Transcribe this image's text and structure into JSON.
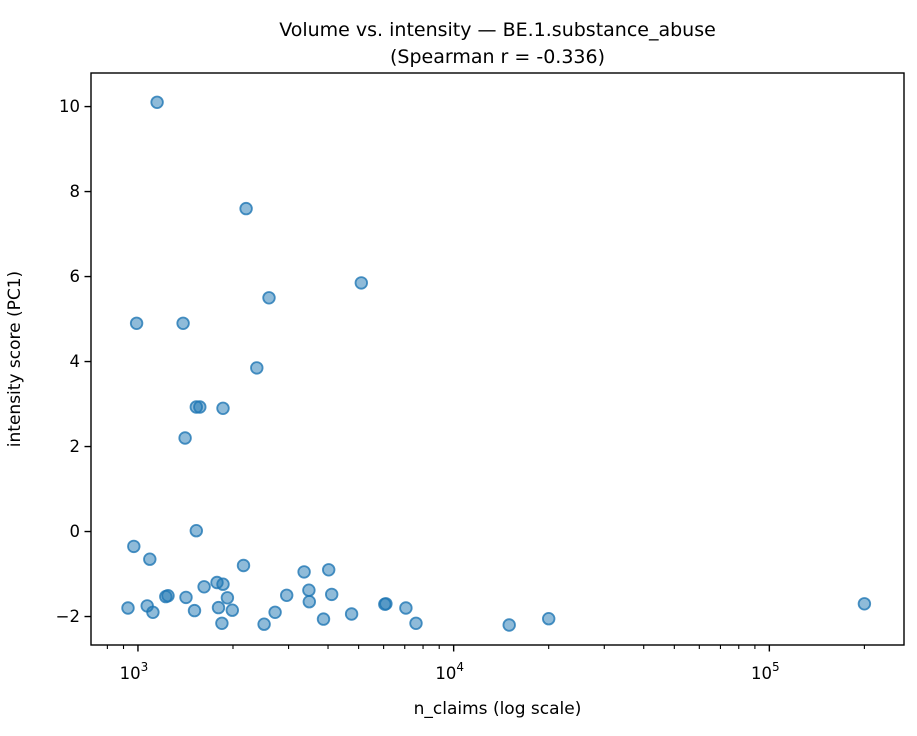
{
  "figure": {
    "background": "#ffffff"
  },
  "chart_data": {
    "type": "scatter",
    "title": "Volume vs. intensity — BE.1.substance_abuse",
    "subtitle": "(Spearman r = -0.336)",
    "xlabel": "n_claims (log scale)",
    "ylabel": "intensity score (PC1)",
    "x_scale": "log",
    "grid": false,
    "legend": "none",
    "xlim": [
      710,
      267000
    ],
    "ylim": [
      -2.67,
      10.79
    ],
    "x_major_tick_exponents": [
      3,
      4,
      5
    ],
    "y_ticks": [
      -2,
      0,
      2,
      4,
      6,
      8,
      10
    ],
    "marker": {
      "shape": "circle",
      "radius": 5.8,
      "fill_color": "#1f77b4",
      "fill_opacity": 0.5,
      "edge_color": "#1f77b4",
      "edge_opacity": 0.8,
      "edge_width": 1.8
    },
    "spine_color": "#000000",
    "points": [
      [
        1150,
        10.1
      ],
      [
        2200,
        7.6
      ],
      [
        2600,
        5.5
      ],
      [
        5100,
        5.85
      ],
      [
        990,
        4.9
      ],
      [
        1390,
        4.9
      ],
      [
        2380,
        3.85
      ],
      [
        1530,
        2.93
      ],
      [
        1570,
        2.93
      ],
      [
        1860,
        2.9
      ],
      [
        1410,
        2.2
      ],
      [
        1530,
        0.02
      ],
      [
        970,
        -0.35
      ],
      [
        1090,
        -0.65
      ],
      [
        2160,
        -0.8
      ],
      [
        3360,
        -0.95
      ],
      [
        4020,
        -0.9
      ],
      [
        930,
        -1.8
      ],
      [
        1070,
        -1.75
      ],
      [
        1115,
        -1.9
      ],
      [
        1225,
        -1.53
      ],
      [
        1245,
        -1.51
      ],
      [
        1420,
        -1.55
      ],
      [
        1510,
        -1.86
      ],
      [
        1620,
        -1.3
      ],
      [
        1780,
        -1.2
      ],
      [
        1860,
        -1.24
      ],
      [
        1800,
        -1.79
      ],
      [
        1920,
        -1.56
      ],
      [
        1845,
        -2.16
      ],
      [
        1990,
        -1.85
      ],
      [
        2510,
        -2.18
      ],
      [
        2720,
        -1.9
      ],
      [
        2960,
        -1.5
      ],
      [
        3480,
        -1.38
      ],
      [
        3490,
        -1.65
      ],
      [
        4110,
        -1.48
      ],
      [
        3870,
        -2.06
      ],
      [
        4750,
        -1.94
      ],
      [
        6050,
        -1.71
      ],
      [
        6100,
        -1.7
      ],
      [
        7060,
        -1.8
      ],
      [
        7600,
        -2.16
      ],
      [
        15000,
        -2.2
      ],
      [
        20000,
        -2.05
      ],
      [
        200000,
        -1.7
      ]
    ]
  }
}
